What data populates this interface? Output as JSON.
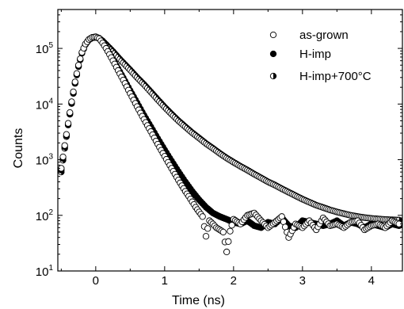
{
  "chart_data": {
    "type": "scatter",
    "xlabel": "Time (ns)",
    "ylabel": "Counts",
    "xlim": [
      -0.55,
      4.45
    ],
    "ylim": [
      10,
      500000
    ],
    "yscale": "log",
    "x_ticks": [
      0,
      1,
      2,
      3,
      4
    ],
    "x_tick_labels": [
      "0",
      "1",
      "2",
      "3",
      "4"
    ],
    "y_ticks": [
      10,
      100,
      1000,
      10000,
      100000
    ],
    "y_tick_labels": [
      {
        "base": "10",
        "exp": "1"
      },
      {
        "base": "10",
        "exp": "2"
      },
      {
        "base": "10",
        "exp": "3"
      },
      {
        "base": "10",
        "exp": "4"
      },
      {
        "base": "10",
        "exp": "5"
      }
    ],
    "grid": false,
    "legend_position": "top-right",
    "series": [
      {
        "name": "as-grown",
        "marker": "open-circle",
        "x": [
          -0.5,
          -0.45,
          -0.4,
          -0.35,
          -0.3,
          -0.25,
          -0.2,
          -0.15,
          -0.1,
          -0.05,
          0,
          0.05,
          0.1,
          0.15,
          0.2,
          0.25,
          0.3,
          0.35,
          0.4,
          0.5,
          0.6,
          0.7,
          0.8,
          0.9,
          1.0,
          1.1,
          1.2,
          1.3,
          1.35,
          1.4,
          1.45,
          1.5,
          1.55,
          1.6,
          1.65,
          1.7,
          1.75,
          1.8,
          1.85,
          1.9,
          1.95,
          2.0,
          2.1,
          2.2,
          2.3,
          2.4,
          2.5,
          2.6,
          2.7,
          2.8,
          2.9,
          3.0,
          3.1,
          3.2,
          3.3,
          3.4,
          3.5,
          3.6,
          3.7,
          3.8,
          3.9,
          4.0,
          4.1,
          4.2,
          4.3,
          4.4
        ],
        "y": [
          700,
          1800,
          4500,
          11000,
          25000,
          50000,
          85000,
          120000,
          145000,
          158000,
          160000,
          150000,
          125000,
          100000,
          78000,
          60000,
          46000,
          35000,
          27000,
          15500,
          9000,
          5300,
          3200,
          1900,
          1150,
          700,
          430,
          270,
          220,
          175,
          140,
          115,
          95,
          42,
          80,
          70,
          60,
          55,
          50,
          22,
          52,
          85,
          70,
          100,
          110,
          80,
          60,
          75,
          95,
          40,
          70,
          60,
          80,
          55,
          90,
          65,
          70,
          60,
          75,
          80,
          55,
          65,
          70,
          60,
          80,
          70
        ]
      },
      {
        "name": "H-imp",
        "marker": "filled-circle",
        "x": [
          -0.5,
          -0.45,
          -0.4,
          -0.35,
          -0.3,
          -0.25,
          -0.2,
          -0.15,
          -0.1,
          -0.05,
          0,
          0.05,
          0.1,
          0.15,
          0.2,
          0.25,
          0.3,
          0.35,
          0.4,
          0.5,
          0.6,
          0.7,
          0.8,
          0.9,
          1.0,
          1.1,
          1.2,
          1.3,
          1.4,
          1.5,
          1.6,
          1.7,
          1.8,
          1.9,
          2.0,
          2.1,
          2.2,
          2.3,
          2.4,
          2.5,
          2.6,
          2.7,
          2.8,
          2.9,
          3.0,
          3.1,
          3.2,
          3.3,
          3.4,
          3.5,
          3.6,
          3.7,
          3.8,
          3.9,
          4.0,
          4.1,
          4.2,
          4.3,
          4.4
        ],
        "y": [
          650,
          1700,
          4300,
          10500,
          24000,
          48000,
          83000,
          118000,
          143000,
          157000,
          162000,
          152000,
          128000,
          103000,
          81000,
          63000,
          49000,
          38000,
          29500,
          17500,
          10500,
          6300,
          3900,
          2400,
          1500,
          950,
          610,
          400,
          270,
          190,
          140,
          110,
          95,
          85,
          75,
          70,
          80,
          65,
          60,
          75,
          70,
          90,
          65,
          60,
          80,
          75,
          70,
          65,
          70,
          80,
          65,
          75,
          70,
          60,
          70,
          65,
          60,
          70,
          65
        ]
      },
      {
        "name": "H-imp+700°C",
        "marker": "half-filled-circle",
        "x": [
          -0.5,
          -0.45,
          -0.4,
          -0.35,
          -0.3,
          -0.25,
          -0.2,
          -0.15,
          -0.1,
          -0.05,
          0,
          0.05,
          0.1,
          0.15,
          0.2,
          0.25,
          0.3,
          0.35,
          0.4,
          0.5,
          0.6,
          0.7,
          0.8,
          0.9,
          1.0,
          1.1,
          1.2,
          1.3,
          1.4,
          1.5,
          1.6,
          1.7,
          1.8,
          1.9,
          2.0,
          2.1,
          2.2,
          2.3,
          2.4,
          2.5,
          2.6,
          2.7,
          2.8,
          2.9,
          3.0,
          3.1,
          3.2,
          3.3,
          3.4,
          3.5,
          3.6,
          3.7,
          3.8,
          3.9,
          4.0,
          4.1,
          4.2,
          4.3,
          4.4
        ],
        "y": [
          600,
          1600,
          4200,
          10200,
          23500,
          47000,
          82000,
          117000,
          142000,
          155000,
          158000,
          152000,
          136000,
          118000,
          102000,
          88000,
          75000,
          64000,
          55000,
          41000,
          30000,
          22500,
          16500,
          12000,
          8800,
          6600,
          5000,
          3900,
          3050,
          2450,
          1950,
          1600,
          1300,
          1070,
          900,
          760,
          650,
          550,
          470,
          400,
          350,
          300,
          260,
          225,
          195,
          172,
          152,
          138,
          125,
          115,
          107,
          100,
          95,
          91,
          88,
          86,
          84,
          83,
          82
        ]
      }
    ]
  },
  "colors": {
    "axis": "#000000",
    "marker_edge": "#000000",
    "marker_fill_filled": "#000000",
    "marker_fill_open": "#ffffff",
    "background": "#ffffff"
  }
}
